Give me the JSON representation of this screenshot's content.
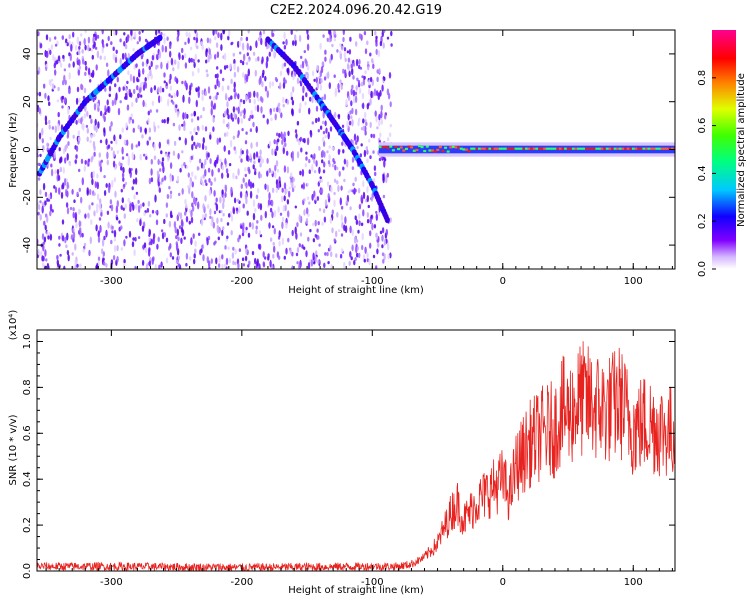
{
  "figure": {
    "title": "C2E2.2024.096.20.42.G19"
  },
  "chart_data": [
    {
      "type": "heatmap",
      "title": "C2E2.2024.096.20.42.G19",
      "xlabel": "Height of straight line (km)",
      "ylabel": "Frequency (Hz)",
      "xlim": [
        -357,
        132
      ],
      "ylim": [
        -50,
        50
      ],
      "xticks": [
        -300,
        -200,
        -100,
        0,
        100
      ],
      "yticks": [
        -40,
        -20,
        0,
        20,
        40
      ],
      "colorbar": {
        "label": "Normalized spectral amplitude",
        "range": [
          0.0,
          1.0
        ],
        "ticks": [
          0.0,
          0.2,
          0.4,
          0.6,
          0.8
        ],
        "colormap": "rainbow (white-purple-blue-cyan-green-yellow-red-magenta)"
      },
      "features": [
        {
          "name": "rising-arc",
          "points": [
            [
              -355,
              -10
            ],
            [
              -340,
              5
            ],
            [
              -320,
              20
            ],
            [
              -300,
              30
            ],
            [
              -280,
              40
            ],
            [
              -262,
              47
            ]
          ]
        },
        {
          "name": "falling-arc",
          "points": [
            [
              -180,
              46
            ],
            [
              -160,
              35
            ],
            [
              -140,
              20
            ],
            [
              -125,
              8
            ],
            [
              -115,
              0
            ],
            [
              -100,
              -15
            ],
            [
              -88,
              -30
            ]
          ]
        },
        {
          "name": "zero-line",
          "x_range": [
            -95,
            132
          ],
          "y": 0
        }
      ],
      "noise_extent_x": [
        -357,
        -85
      ]
    },
    {
      "type": "line",
      "xlabel": "Height of straight line (km)",
      "ylabel": "SNR (10 * v/v)",
      "scale_label": "(x10⁴)",
      "xlim": [
        -357,
        132
      ],
      "ylim": [
        0.0,
        1.05
      ],
      "xticks": [
        -300,
        -200,
        -100,
        0,
        100
      ],
      "yticks": [
        0.0,
        0.2,
        0.4,
        0.6,
        0.8,
        1.0
      ],
      "line_color": "#e8231f",
      "series": [
        {
          "x": [
            -357,
            -300,
            -200,
            -100,
            -80,
            -70,
            -60,
            -50,
            -40,
            -35,
            -30,
            -20,
            -10,
            0,
            5,
            10,
            15,
            20,
            30,
            40,
            45,
            50,
            60,
            70,
            80,
            90,
            100,
            110,
            120,
            132
          ],
          "y": [
            0.02,
            0.02,
            0.015,
            0.02,
            0.02,
            0.03,
            0.06,
            0.12,
            0.25,
            0.3,
            0.22,
            0.3,
            0.35,
            0.4,
            0.32,
            0.45,
            0.5,
            0.55,
            0.6,
            0.62,
            0.7,
            0.68,
            0.75,
            0.72,
            0.7,
            0.74,
            0.62,
            0.65,
            0.62,
            0.6
          ]
        }
      ]
    }
  ]
}
